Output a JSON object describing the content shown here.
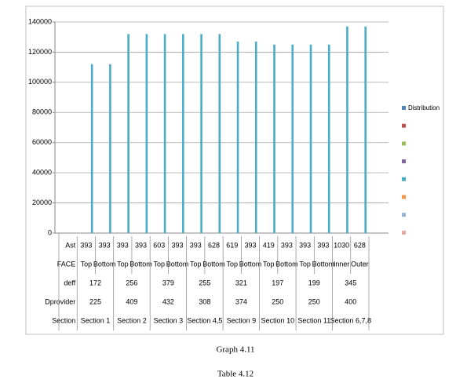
{
  "chart_data": {
    "type": "bar",
    "ylim": [
      0,
      140000
    ],
    "yticks": [
      0,
      20000,
      40000,
      60000,
      80000,
      100000,
      120000,
      140000
    ],
    "grid": true,
    "series": [
      {
        "name": "Distribution",
        "color": "#4f81bd",
        "values": [
          0,
          0,
          0,
          0,
          0,
          0,
          0,
          0,
          0,
          0,
          0,
          0,
          0,
          0,
          0,
          0,
          0
        ]
      },
      {
        "name": null,
        "color": "#c0504d",
        "values": [
          0,
          0,
          0,
          0,
          0,
          0,
          0,
          0,
          0,
          0,
          0,
          0,
          0,
          0,
          0,
          0,
          0
        ]
      },
      {
        "name": null,
        "color": "#9bbb59",
        "values": [
          0,
          0,
          0,
          0,
          0,
          0,
          0,
          0,
          0,
          0,
          0,
          0,
          0,
          0,
          0,
          0,
          0
        ]
      },
      {
        "name": null,
        "color": "#8064a2",
        "values": [
          0,
          0,
          0,
          0,
          0,
          0,
          0,
          0,
          0,
          0,
          0,
          0,
          0,
          0,
          0,
          0,
          0
        ]
      },
      {
        "name": null,
        "color": "#4bacc6",
        "values": [
          0,
          112000,
          112000,
          132000,
          132000,
          132000,
          132000,
          132000,
          132000,
          127000,
          127000,
          125000,
          125000,
          125000,
          125000,
          137000,
          137000
        ]
      },
      {
        "name": null,
        "color": "#f79646",
        "values": [
          0,
          0,
          0,
          0,
          0,
          0,
          0,
          0,
          0,
          0,
          0,
          0,
          0,
          0,
          0,
          0,
          0
        ]
      },
      {
        "name": null,
        "color": "#95b3d7",
        "values": [
          0,
          0,
          0,
          0,
          0,
          0,
          0,
          0,
          0,
          0,
          0,
          0,
          0,
          0,
          0,
          0,
          0
        ]
      },
      {
        "name": null,
        "color": "#e6a9a9",
        "values": [
          0,
          0,
          0,
          0,
          0,
          0,
          0,
          0,
          0,
          0,
          0,
          0,
          0,
          0,
          0,
          0,
          0
        ]
      }
    ],
    "table": {
      "rows": [
        {
          "label": "Ast",
          "cells": [
            393,
            393,
            393,
            393,
            603,
            393,
            393,
            628,
            619,
            393,
            419,
            393,
            393,
            393,
            1030,
            628
          ]
        },
        {
          "label": "FACE",
          "cells": [
            "Top",
            "Bottom",
            "Top",
            "Bottom",
            "Top",
            "Bottom",
            "Top",
            "Bottom",
            "Top",
            "Bottom",
            "Top",
            "Bottom",
            "Top",
            "Bottom",
            "Inner",
            "Outer"
          ]
        },
        {
          "label": "deff",
          "cells": [
            172,
            256,
            379,
            255,
            321,
            197,
            199,
            345
          ]
        },
        {
          "label": "Dprovider",
          "cells": [
            225,
            409,
            432,
            308,
            374,
            250,
            250,
            400
          ]
        },
        {
          "label": "Section",
          "cells": [
            "Section 1",
            "Section 2",
            "Section 3",
            "Section 4,5",
            "Section 9",
            "Section 10",
            "Section 11",
            "Section 6,7,8"
          ]
        }
      ]
    }
  },
  "captions": [
    "Graph 4.11",
    "Table 4.12"
  ]
}
